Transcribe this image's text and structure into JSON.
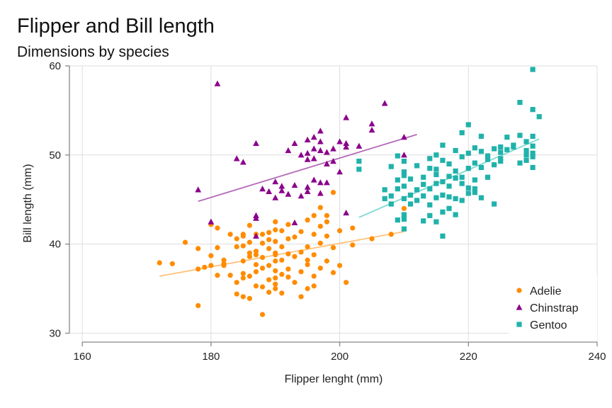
{
  "chart_data": {
    "type": "scatter",
    "title": "Flipper and Bill length",
    "subtitle": "Dimensions by species",
    "xlabel": "Flipper lenght (mm)",
    "ylabel": "Bill length (mm)",
    "xlim": [
      158,
      240
    ],
    "ylim": [
      29,
      60
    ],
    "xticks": [
      160,
      180,
      200,
      220,
      240
    ],
    "yticks": [
      30,
      40,
      50,
      60
    ],
    "grid": true,
    "legend_position": "bottom-right",
    "series": [
      {
        "name": "Adelie",
        "marker": "circle",
        "color": "#ff8c00",
        "trend_color": "#ffc27a",
        "trend": [
          [
            172,
            36.4
          ],
          [
            210,
            41.4
          ]
        ],
        "points": [
          [
            172,
            37.9
          ],
          [
            174,
            37.8
          ],
          [
            176,
            40.2
          ],
          [
            178,
            33.1
          ],
          [
            178,
            39.5
          ],
          [
            178,
            37.2
          ],
          [
            179,
            37.4
          ],
          [
            180,
            37.6
          ],
          [
            180,
            38.7
          ],
          [
            180,
            42.2
          ],
          [
            181,
            36.5
          ],
          [
            181,
            39.6
          ],
          [
            181,
            41.8
          ],
          [
            182,
            38.2
          ],
          [
            182,
            37.6
          ],
          [
            182,
            37.8
          ],
          [
            183,
            36.5
          ],
          [
            183,
            41.1
          ],
          [
            184,
            34.4
          ],
          [
            184,
            35.7
          ],
          [
            184,
            39.7
          ],
          [
            184,
            40.6
          ],
          [
            185,
            36.7
          ],
          [
            185,
            38.1
          ],
          [
            185,
            39.8
          ],
          [
            185,
            41.1
          ],
          [
            185,
            36.2
          ],
          [
            185,
            40.9
          ],
          [
            185,
            34.1
          ],
          [
            186,
            33.9
          ],
          [
            186,
            36.4
          ],
          [
            186,
            38.6
          ],
          [
            186,
            39.0
          ],
          [
            186,
            40.2
          ],
          [
            186,
            42.1
          ],
          [
            187,
            35.3
          ],
          [
            187,
            37.7
          ],
          [
            187,
            38.8
          ],
          [
            187,
            41.1
          ],
          [
            187,
            36.9
          ],
          [
            187,
            39.2
          ],
          [
            188,
            32.1
          ],
          [
            188,
            35.2
          ],
          [
            188,
            37.3
          ],
          [
            188,
            38.5
          ],
          [
            188,
            41.1
          ],
          [
            188,
            40.1
          ],
          [
            189,
            34.6
          ],
          [
            189,
            36.0
          ],
          [
            189,
            39.5
          ],
          [
            189,
            40.5
          ],
          [
            189,
            37.6
          ],
          [
            189,
            41.3
          ],
          [
            190,
            35.0
          ],
          [
            190,
            36.2
          ],
          [
            190,
            37.0
          ],
          [
            190,
            38.1
          ],
          [
            190,
            39.0
          ],
          [
            190,
            40.3
          ],
          [
            190,
            41.6
          ],
          [
            190,
            42.5
          ],
          [
            190,
            38.8
          ],
          [
            190,
            35.5
          ],
          [
            191,
            36.6
          ],
          [
            191,
            38.2
          ],
          [
            191,
            39.7
          ],
          [
            191,
            41.5
          ],
          [
            191,
            34.5
          ],
          [
            192,
            36.3
          ],
          [
            192,
            38.9
          ],
          [
            192,
            40.6
          ],
          [
            192,
            42.2
          ],
          [
            192,
            37.2
          ],
          [
            193,
            35.7
          ],
          [
            193,
            38.6
          ],
          [
            193,
            40.8
          ],
          [
            194,
            34.1
          ],
          [
            194,
            36.9
          ],
          [
            194,
            39.1
          ],
          [
            194,
            41.4
          ],
          [
            195,
            35.0
          ],
          [
            195,
            37.7
          ],
          [
            195,
            39.7
          ],
          [
            195,
            42.7
          ],
          [
            195,
            38.2
          ],
          [
            196,
            36.4
          ],
          [
            196,
            38.8
          ],
          [
            196,
            41.1
          ],
          [
            196,
            43.2
          ],
          [
            196,
            35.3
          ],
          [
            197,
            37.3
          ],
          [
            197,
            40.1
          ],
          [
            197,
            44.1
          ],
          [
            197,
            42.0
          ],
          [
            198,
            38.1
          ],
          [
            198,
            40.9
          ],
          [
            198,
            43.2
          ],
          [
            198,
            42.5
          ],
          [
            199,
            36.8
          ],
          [
            199,
            39.6
          ],
          [
            199,
            45.8
          ],
          [
            200,
            37.6
          ],
          [
            200,
            41.5
          ],
          [
            201,
            35.7
          ],
          [
            202,
            39.9
          ],
          [
            202,
            41.8
          ],
          [
            205,
            40.6
          ],
          [
            208,
            41.1
          ],
          [
            210,
            44.0
          ]
        ]
      },
      {
        "name": "Chinstrap",
        "marker": "triangle",
        "color": "#8b008b",
        "trend_color": "#b46ab8",
        "trend": [
          [
            178,
            44.8
          ],
          [
            212,
            52.3
          ]
        ],
        "points": [
          [
            178,
            46.1
          ],
          [
            180,
            42.5
          ],
          [
            181,
            58.0
          ],
          [
            184,
            49.6
          ],
          [
            185,
            49.2
          ],
          [
            187,
            51.3
          ],
          [
            187,
            42.9
          ],
          [
            187,
            43.2
          ],
          [
            187,
            40.9
          ],
          [
            188,
            46.2
          ],
          [
            189,
            45.9
          ],
          [
            190,
            47.0
          ],
          [
            190,
            45.2
          ],
          [
            191,
            46.0
          ],
          [
            191,
            46.5
          ],
          [
            192,
            50.5
          ],
          [
            192,
            45.6
          ],
          [
            193,
            51.3
          ],
          [
            193,
            46.6
          ],
          [
            193,
            42.4
          ],
          [
            194,
            50.0
          ],
          [
            194,
            45.4
          ],
          [
            195,
            50.2
          ],
          [
            195,
            51.7
          ],
          [
            195,
            49.5
          ],
          [
            195,
            46.4
          ],
          [
            195,
            45.9
          ],
          [
            196,
            52.0
          ],
          [
            196,
            50.7
          ],
          [
            196,
            49.6
          ],
          [
            196,
            47.2
          ],
          [
            197,
            52.7
          ],
          [
            197,
            51.5
          ],
          [
            197,
            50.5
          ],
          [
            197,
            45.7
          ],
          [
            197,
            46.9
          ],
          [
            198,
            50.3
          ],
          [
            198,
            49.0
          ],
          [
            198,
            46.9
          ],
          [
            199,
            50.7
          ],
          [
            199,
            49.3
          ],
          [
            200,
            51.5
          ],
          [
            200,
            48.1
          ],
          [
            201,
            54.2
          ],
          [
            201,
            51.3
          ],
          [
            201,
            50.9
          ],
          [
            201,
            43.5
          ],
          [
            203,
            51.0
          ],
          [
            205,
            53.5
          ],
          [
            205,
            52.8
          ],
          [
            207,
            55.8
          ],
          [
            210,
            52.0
          ],
          [
            210,
            50.0
          ]
        ]
      },
      {
        "name": "Gentoo",
        "marker": "square",
        "color": "#20b2aa",
        "trend_color": "#7fd9d3",
        "trend": [
          [
            203,
            43.0
          ],
          [
            231,
            51.8
          ]
        ],
        "points": [
          [
            203,
            48.4
          ],
          [
            203,
            49.3
          ],
          [
            207,
            45.1
          ],
          [
            207,
            46.1
          ],
          [
            208,
            48.7
          ],
          [
            208,
            44.5
          ],
          [
            208,
            45.4
          ],
          [
            209,
            46.2
          ],
          [
            209,
            49.9
          ],
          [
            209,
            42.7
          ],
          [
            209,
            47.2
          ],
          [
            210,
            41.7
          ],
          [
            210,
            42.8
          ],
          [
            210,
            43.3
          ],
          [
            210,
            45.1
          ],
          [
            210,
            46.5
          ],
          [
            210,
            47.7
          ],
          [
            210,
            48.1
          ],
          [
            210,
            49.3
          ],
          [
            211,
            45.5
          ],
          [
            211,
            47.3
          ],
          [
            211,
            44.5
          ],
          [
            212,
            44.9
          ],
          [
            212,
            46.1
          ],
          [
            212,
            48.8
          ],
          [
            213,
            45.4
          ],
          [
            213,
            46.7
          ],
          [
            213,
            42.6
          ],
          [
            213,
            47.5
          ],
          [
            214,
            43.2
          ],
          [
            214,
            46.2
          ],
          [
            214,
            49.6
          ],
          [
            214,
            44.4
          ],
          [
            214,
            48.5
          ],
          [
            215,
            45.2
          ],
          [
            215,
            47.8
          ],
          [
            215,
            48.4
          ],
          [
            215,
            46.8
          ],
          [
            215,
            50.0
          ],
          [
            215,
            42.5
          ],
          [
            216,
            45.5
          ],
          [
            216,
            47.0
          ],
          [
            216,
            49.4
          ],
          [
            216,
            43.6
          ],
          [
            216,
            51.1
          ],
          [
            216,
            40.9
          ],
          [
            217,
            45.3
          ],
          [
            217,
            47.6
          ],
          [
            217,
            49.0
          ],
          [
            217,
            46.5
          ],
          [
            217,
            44.0
          ],
          [
            218,
            45.1
          ],
          [
            218,
            48.2
          ],
          [
            218,
            50.5
          ],
          [
            218,
            47.4
          ],
          [
            218,
            43.3
          ],
          [
            219,
            46.8
          ],
          [
            219,
            49.8
          ],
          [
            219,
            44.9
          ],
          [
            219,
            52.5
          ],
          [
            219,
            47.5
          ],
          [
            220,
            45.7
          ],
          [
            220,
            48.5
          ],
          [
            220,
            50.2
          ],
          [
            220,
            46.3
          ],
          [
            220,
            53.4
          ],
          [
            221,
            47.2
          ],
          [
            221,
            49.1
          ],
          [
            221,
            50.8
          ],
          [
            221,
            46.2
          ],
          [
            221,
            45.8
          ],
          [
            222,
            48.6
          ],
          [
            222,
            50.4
          ],
          [
            222,
            45.2
          ],
          [
            222,
            52.1
          ],
          [
            223,
            47.5
          ],
          [
            223,
            49.5
          ],
          [
            223,
            49.9
          ],
          [
            224,
            48.9
          ],
          [
            224,
            50.7
          ],
          [
            224,
            44.5
          ],
          [
            225,
            49.6
          ],
          [
            225,
            50.9
          ],
          [
            225,
            50.3
          ],
          [
            225,
            49.3
          ],
          [
            226,
            50.6
          ],
          [
            226,
            52.0
          ],
          [
            227,
            50.9
          ],
          [
            227,
            51.1
          ],
          [
            228,
            55.9
          ],
          [
            228,
            52.2
          ],
          [
            228,
            49.1
          ],
          [
            229,
            50.5
          ],
          [
            229,
            50.0
          ],
          [
            229,
            51.5
          ],
          [
            229,
            49.4
          ],
          [
            230,
            48.6
          ],
          [
            230,
            51.0
          ],
          [
            230,
            52.1
          ],
          [
            230,
            55.1
          ],
          [
            230,
            59.6
          ],
          [
            230,
            49.8
          ],
          [
            230,
            50.2
          ],
          [
            231,
            54.3
          ]
        ]
      }
    ]
  }
}
